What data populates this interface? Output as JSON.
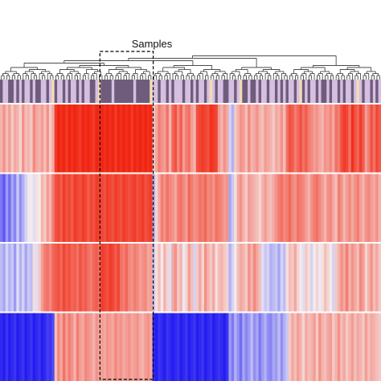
{
  "chart_data": {
    "type": "heatmap",
    "title": "Samples",
    "row_count": 4,
    "column_count": 140,
    "row_dendrogram": false,
    "column_dendrogram": true,
    "highlight_box_style": "dashed",
    "highlighted_columns": [
      37,
      55
    ],
    "value_range": [
      -1,
      1
    ],
    "colors": {
      "low": "#1a12f0",
      "mid": "#f5f5f5",
      "high": "#f01a05",
      "annotation_light": "#d6bfe0",
      "annotation_dark": "#6f5c7c",
      "annotation_accent": "#f2dcb4",
      "separator": "#ffffff",
      "dendrogram": "#333333",
      "highlight_box": "#000000"
    },
    "annotation_track": [
      1,
      0,
      0,
      1,
      1,
      0,
      1,
      0,
      1,
      0,
      0,
      1,
      0,
      1,
      1,
      0,
      0,
      1,
      0,
      2,
      1,
      0,
      0,
      1,
      0,
      1,
      0,
      0,
      1,
      0,
      1,
      0,
      0,
      1,
      1,
      0,
      2,
      1,
      1,
      1,
      1,
      0,
      1,
      1,
      1,
      1,
      1,
      1,
      1,
      0,
      1,
      1,
      1,
      1,
      1,
      2,
      0,
      0,
      1,
      0,
      0,
      1,
      0,
      1,
      0,
      0,
      0,
      1,
      0,
      0,
      1,
      0,
      1,
      0,
      0,
      1,
      0,
      2,
      0,
      1,
      0,
      0,
      1,
      1,
      0,
      0,
      1,
      0,
      2,
      1,
      1,
      0,
      1,
      1,
      0,
      1,
      0,
      0,
      1,
      0,
      0,
      1,
      0,
      1,
      0,
      1,
      0,
      0,
      1,
      0,
      2,
      1,
      0,
      1,
      0,
      0,
      1,
      0,
      1,
      1,
      0,
      1,
      0,
      0,
      1,
      0,
      1,
      0,
      0,
      1,
      0,
      2,
      0,
      1,
      0,
      0,
      1,
      0,
      1,
      0
    ],
    "values": [
      [
        0.3,
        0.45,
        0.25,
        0.4,
        0.2,
        0.35,
        0.3,
        0.15,
        0.45,
        0.25,
        0.3,
        0.2,
        0.5,
        0.35,
        0.3,
        0.4,
        0.25,
        0.45,
        0.2,
        0.35,
        0.85,
        0.95,
        0.9,
        0.95,
        0.85,
        0.95,
        0.9,
        0.95,
        0.9,
        0.85,
        0.95,
        0.9,
        0.95,
        0.9,
        0.85,
        0.95,
        0.9,
        0.95,
        0.9,
        0.95,
        0.9,
        0.95,
        0.85,
        0.95,
        0.9,
        0.95,
        0.9,
        0.95,
        0.85,
        0.95,
        0.9,
        0.95,
        0.9,
        0.95,
        0.9,
        0.95,
        0.2,
        0.35,
        0.55,
        0.45,
        0.4,
        0.6,
        0.3,
        0.65,
        0.75,
        0.5,
        0.7,
        0.4,
        0.55,
        0.6,
        0.4,
        0.3,
        0.75,
        0.8,
        0.85,
        0.8,
        0.75,
        0.9,
        0.85,
        0.8,
        0.4,
        0.3,
        0.45,
        0.35,
        -0.15,
        -0.3,
        0.2,
        0.3,
        0.45,
        0.4,
        0.25,
        0.5,
        0.3,
        0.35,
        0.45,
        0.3,
        0.25,
        0.4,
        0.35,
        0.3,
        0.2,
        0.35,
        0.3,
        0.45,
        0.25,
        0.6,
        0.75,
        0.7,
        0.55,
        0.65,
        0.75,
        0.6,
        0.7,
        0.55,
        0.5,
        0.4,
        0.45,
        0.35,
        0.3,
        0.45,
        0.4,
        0.5,
        0.35,
        0.6,
        0.55,
        0.75,
        0.85,
        0.8,
        0.6,
        0.9,
        0.75,
        0.65,
        0.85,
        0.7,
        0.4,
        0.55,
        0.75,
        0.6,
        0.8,
        0.7
      ],
      [
        -0.55,
        -0.7,
        -0.4,
        -0.6,
        -0.35,
        -0.5,
        -0.2,
        -0.45,
        -0.3,
        -0.15,
        -0.05,
        0.05,
        -0.1,
        0.1,
        0.05,
        0.3,
        0.2,
        0.4,
        0.3,
        0.55,
        0.75,
        0.8,
        0.7,
        0.85,
        0.75,
        0.8,
        0.7,
        0.85,
        0.8,
        0.75,
        0.85,
        0.8,
        0.7,
        0.8,
        0.75,
        0.85,
        0.8,
        0.8,
        0.75,
        0.85,
        0.8,
        0.75,
        0.85,
        0.8,
        0.75,
        0.85,
        0.8,
        0.75,
        0.8,
        0.85,
        0.75,
        0.8,
        0.85,
        0.75,
        0.8,
        0.85,
        -0.3,
        0.15,
        0.35,
        0.55,
        0.45,
        0.6,
        0.5,
        0.45,
        0.35,
        0.55,
        0.6,
        0.5,
        0.4,
        0.65,
        0.55,
        0.45,
        0.5,
        0.6,
        0.55,
        0.65,
        0.5,
        0.55,
        0.45,
        0.6,
        0.55,
        0.5,
        0.4,
        0.45,
        -0.35,
        -0.2,
        0.1,
        0.35,
        0.45,
        0.3,
        0.2,
        0.4,
        0.35,
        0.3,
        0.25,
        0.15,
        0.3,
        0.4,
        0.3,
        0.25,
        0.35,
        0.45,
        0.55,
        0.6,
        0.5,
        0.55,
        0.65,
        0.5,
        0.45,
        0.6,
        0.55,
        0.5,
        0.4,
        0.3,
        0.45,
        0.55,
        0.6,
        0.5,
        0.4,
        0.3,
        0.45,
        0.5,
        0.35,
        0.25,
        0.55,
        0.45,
        0.3,
        0.4,
        0.5,
        0.35,
        0.45,
        0.55,
        0.4,
        0.3,
        0.45,
        0.5,
        0.4,
        0.35,
        0.45,
        0.3
      ],
      [
        -0.25,
        -0.35,
        -0.15,
        -0.3,
        -0.2,
        -0.4,
        -0.1,
        -0.3,
        -0.15,
        -0.35,
        -0.2,
        -0.25,
        0.1,
        -0.1,
        0.2,
        0.4,
        0.55,
        0.6,
        0.5,
        0.65,
        0.7,
        0.75,
        0.65,
        0.8,
        0.7,
        0.75,
        0.65,
        0.7,
        0.6,
        0.75,
        0.65,
        0.7,
        0.6,
        0.55,
        0.65,
        0.7,
        0.6,
        0.85,
        0.8,
        0.75,
        0.85,
        0.8,
        0.7,
        0.8,
        0.6,
        0.55,
        0.65,
        0.5,
        0.45,
        0.55,
        0.5,
        0.4,
        0.45,
        0.5,
        0.35,
        0.4,
        -0.2,
        0.1,
        0.25,
        0.05,
        0.3,
        0.15,
        -0.1,
        0.35,
        0.45,
        0.2,
        0.3,
        -0.05,
        0.15,
        0.4,
        0.25,
        -0.15,
        0.2,
        0.35,
        0.15,
        0.45,
        0.3,
        0.2,
        0.35,
        0.1,
        0.25,
        0.3,
        0.2,
        0.15,
        -0.3,
        -0.15,
        0.05,
        0.25,
        0.35,
        0.3,
        0.2,
        0.45,
        0.3,
        0.5,
        0.35,
        0.25,
        -0.1,
        -0.2,
        -0.15,
        -0.3,
        -0.25,
        -0.2,
        -0.35,
        -0.15,
        -0.25,
        0.1,
        0.25,
        0.2,
        0.35,
        0.15,
        0.05,
        -0.1,
        0.2,
        0.1,
        -0.15,
        0.05,
        0.15,
        -0.05,
        0.1,
        0.25,
        0.15,
        0.05,
        -0.15,
        0.2,
        0.3,
        0.45,
        0.35,
        0.55,
        0.3,
        0.45,
        0.35,
        0.25,
        0.5,
        0.4,
        0.15,
        0.3,
        0.45,
        0.25,
        0.35,
        0.2
      ],
      [
        -0.9,
        -0.95,
        -0.85,
        -0.95,
        -0.9,
        -0.85,
        -0.95,
        -0.9,
        -0.85,
        -0.95,
        -0.9,
        -0.85,
        -0.95,
        -0.9,
        -0.85,
        -0.95,
        -0.9,
        -0.8,
        -0.85,
        -0.75,
        0.25,
        0.5,
        0.35,
        0.6,
        0.4,
        0.55,
        0.45,
        0.3,
        0.55,
        0.4,
        0.35,
        0.5,
        0.45,
        0.4,
        0.3,
        0.45,
        0.35,
        0.4,
        0.35,
        0.45,
        0.4,
        0.35,
        0.5,
        0.4,
        0.45,
        0.35,
        0.4,
        0.45,
        0.35,
        0.4,
        0.45,
        0.35,
        0.3,
        0.4,
        0.45,
        0.35,
        -0.9,
        -0.95,
        -0.85,
        -0.9,
        -0.95,
        -0.85,
        -0.9,
        -0.95,
        -0.9,
        -0.85,
        -0.95,
        -0.9,
        -0.85,
        -0.95,
        -0.9,
        -0.85,
        -0.95,
        -0.9,
        -0.85,
        -0.95,
        -0.9,
        -0.85,
        -0.95,
        -0.9,
        -0.85,
        -0.9,
        -0.95,
        -0.85,
        -0.4,
        -0.55,
        -0.3,
        -0.45,
        -0.6,
        -0.35,
        -0.5,
        -0.4,
        -0.25,
        -0.45,
        -0.35,
        -0.55,
        -0.4,
        -0.3,
        -0.45,
        -0.5,
        -0.35,
        -0.4,
        -0.25,
        -0.45,
        -0.3,
        -0.2,
        0.2,
        0.35,
        0.25,
        0.4,
        0.3,
        0.15,
        0.35,
        0.25,
        0.3,
        0.4,
        0.2,
        0.45,
        0.3,
        0.25,
        0.35,
        0.4,
        0.2,
        0.3,
        0.45,
        0.25,
        0.35,
        0.2,
        0.3,
        0.4,
        0.25,
        0.35,
        0.3,
        0.2,
        0.4,
        0.25,
        0.35,
        0.3,
        0.25,
        0.2
      ]
    ]
  }
}
